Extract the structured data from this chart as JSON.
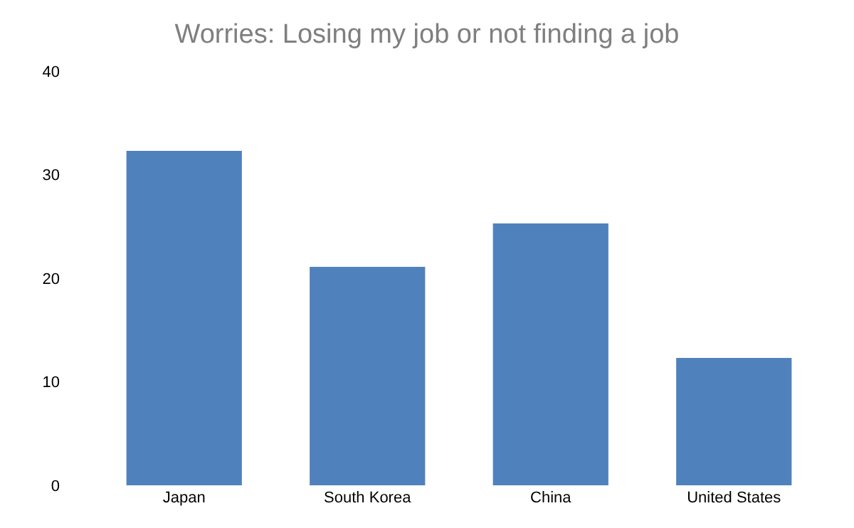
{
  "chart_data": {
    "type": "bar",
    "title": "Worries: Losing my job or not finding a job",
    "categories": [
      "Japan",
      "South Korea",
      "China",
      "United States"
    ],
    "values": [
      32.3,
      21.1,
      25.3,
      12.3
    ],
    "color": "#4f81bd",
    "ylim": [
      0,
      40
    ],
    "yticks": [
      0,
      10,
      20,
      30,
      40
    ],
    "grid": false
  }
}
